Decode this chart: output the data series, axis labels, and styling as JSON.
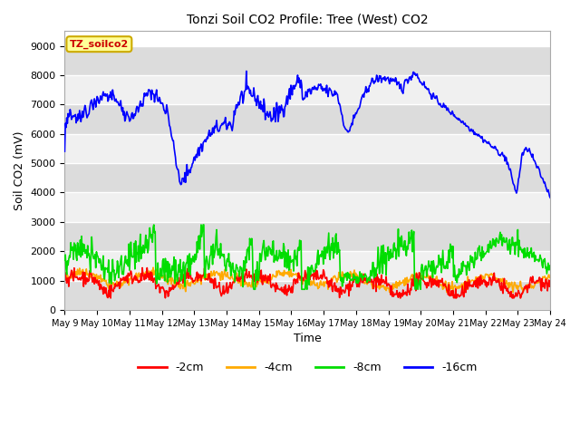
{
  "title": "Tonzi Soil CO2 Profile: Tree (West) CO2",
  "ylabel": "Soil CO2 (mV)",
  "xlabel": "Time",
  "legend_label": "TZ_soilco2",
  "ylim": [
    0,
    9500
  ],
  "yticks": [
    0,
    1000,
    2000,
    3000,
    4000,
    5000,
    6000,
    7000,
    8000,
    9000
  ],
  "colors": {
    "2cm": "#ff0000",
    "4cm": "#ffaa00",
    "8cm": "#00dd00",
    "16cm": "#0000ff"
  },
  "bg_color_light": "#f0f0f0",
  "bg_color_dark": "#dcdcdc",
  "legend_box_color": "#ffff99",
  "legend_text_color": "#cc0000",
  "legend_edge_color": "#ccaa00",
  "x_tick_labels": [
    "May 9",
    "May 10",
    "May 11",
    "May 12",
    "May 13",
    "May 14",
    "May 15",
    "May 16",
    "May 17",
    "May 18",
    "May 19",
    "May 20",
    "May 21",
    "May 22",
    "May 23",
    "May 24"
  ],
  "figsize": [
    6.4,
    4.8
  ],
  "dpi": 100
}
